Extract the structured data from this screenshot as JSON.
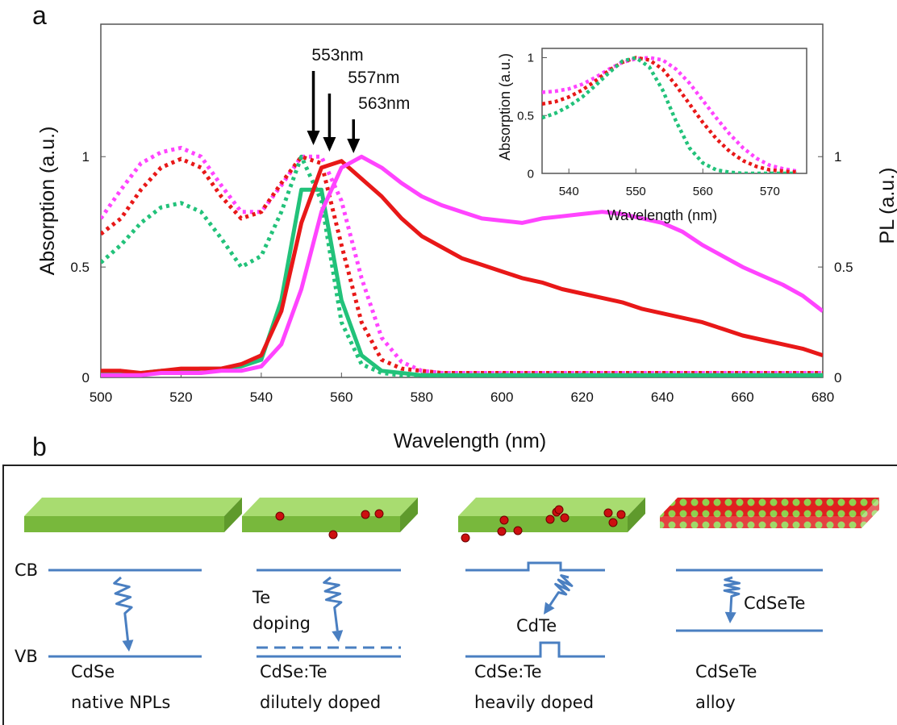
{
  "panel_labels": [
    "a",
    "b"
  ],
  "chart_data": [
    {
      "type": "line",
      "xlabel": "Wavelength (nm)",
      "ylabel": "Absorption (a.u.)",
      "y2label": "PL (a.u.)",
      "xlim": [
        500,
        680
      ],
      "xticks": [
        500,
        520,
        540,
        560,
        580,
        600,
        620,
        640,
        660,
        680
      ],
      "ylim": [
        0,
        1.6
      ],
      "yticks": [
        0,
        0.5,
        1
      ],
      "y2lim": [
        0,
        1.6
      ],
      "y2ticks": [
        0,
        0.5,
        1
      ],
      "grid": false,
      "x": [
        500,
        505,
        510,
        515,
        520,
        525,
        530,
        535,
        540,
        545,
        550,
        555,
        560,
        565,
        570,
        575,
        580,
        585,
        590,
        595,
        600,
        605,
        610,
        615,
        620,
        625,
        630,
        635,
        640,
        645,
        650,
        655,
        660,
        665,
        670,
        675,
        680
      ],
      "series": [
        {
          "color": "#ff44ff",
          "line_style": "dotted",
          "values": [
            0.72,
            0.85,
            0.97,
            1.02,
            1.04,
            1.0,
            0.87,
            0.75,
            0.75,
            0.87,
            1.0,
            1.0,
            0.8,
            0.45,
            0.18,
            0.07,
            0.03,
            0.02,
            0.02,
            0.02,
            0.02,
            0.02,
            0.02,
            0.02,
            0.02,
            0.02,
            0.02,
            0.02,
            0.02,
            0.02,
            0.02,
            0.02,
            0.02,
            0.02,
            0.02,
            0.02,
            0.02
          ]
        },
        {
          "color": "#e81818",
          "line_style": "dotted",
          "values": [
            0.65,
            0.72,
            0.85,
            0.95,
            0.99,
            0.95,
            0.82,
            0.72,
            0.75,
            0.88,
            1.0,
            0.97,
            0.6,
            0.25,
            0.08,
            0.04,
            0.03,
            0.02,
            0.02,
            0.02,
            0.02,
            0.02,
            0.02,
            0.02,
            0.02,
            0.02,
            0.02,
            0.02,
            0.02,
            0.02,
            0.02,
            0.02,
            0.02,
            0.02,
            0.02,
            0.02,
            0.02
          ]
        },
        {
          "color": "#22c27a",
          "line_style": "dotted",
          "values": [
            0.52,
            0.6,
            0.7,
            0.77,
            0.79,
            0.75,
            0.63,
            0.5,
            0.55,
            0.75,
            1.0,
            0.8,
            0.25,
            0.06,
            0.02,
            0.01,
            0.01,
            0.01,
            0.01,
            0.01,
            0.01,
            0.01,
            0.01,
            0.01,
            0.01,
            0.01,
            0.01,
            0.01,
            0.01,
            0.01,
            0.01,
            0.01,
            0.01,
            0.01,
            0.01,
            0.01,
            0.01
          ]
        },
        {
          "color": "#22c27a",
          "line_style": "solid",
          "axis": "y2",
          "values": [
            0.02,
            0.02,
            0.02,
            0.03,
            0.03,
            0.04,
            0.04,
            0.05,
            0.08,
            0.35,
            0.85,
            0.85,
            0.35,
            0.1,
            0.03,
            0.02,
            0.01,
            0.01,
            0.01,
            0.01,
            0.01,
            0.01,
            0.01,
            0.01,
            0.01,
            0.01,
            0.01,
            0.01,
            0.01,
            0.01,
            0.01,
            0.01,
            0.01,
            0.01,
            0.01,
            0.01,
            0.01
          ]
        },
        {
          "color": "#e81818",
          "line_style": "solid",
          "axis": "y2",
          "values": [
            0.03,
            0.03,
            0.02,
            0.03,
            0.04,
            0.04,
            0.04,
            0.06,
            0.1,
            0.3,
            0.7,
            0.95,
            0.98,
            0.9,
            0.82,
            0.72,
            0.64,
            0.59,
            0.54,
            0.51,
            0.48,
            0.45,
            0.43,
            0.4,
            0.38,
            0.36,
            0.34,
            0.31,
            0.29,
            0.27,
            0.25,
            0.22,
            0.19,
            0.17,
            0.15,
            0.13,
            0.1
          ]
        },
        {
          "color": "#ff44ff",
          "line_style": "solid",
          "axis": "y2",
          "values": [
            0.01,
            0.01,
            0.01,
            0.02,
            0.02,
            0.02,
            0.03,
            0.03,
            0.05,
            0.15,
            0.4,
            0.75,
            0.95,
            1.0,
            0.95,
            0.88,
            0.82,
            0.78,
            0.75,
            0.72,
            0.71,
            0.7,
            0.72,
            0.73,
            0.74,
            0.75,
            0.74,
            0.72,
            0.7,
            0.66,
            0.6,
            0.55,
            0.5,
            0.46,
            0.42,
            0.37,
            0.3
          ]
        }
      ],
      "annotations": [
        {
          "label": "553nm",
          "x": 553
        },
        {
          "label": "557nm",
          "x": 557
        },
        {
          "label": "563nm",
          "x": 563
        }
      ]
    },
    {
      "type": "line",
      "xlabel": "Wavelength (nm)",
      "ylabel": "Absorption (a.u.)",
      "xlim": [
        536,
        575.5
      ],
      "xticks": [
        540,
        550,
        560,
        570
      ],
      "ylim": [
        0,
        1.08
      ],
      "yticks": [
        0,
        0.5,
        1
      ],
      "x": [
        536,
        538,
        540,
        542,
        544,
        546,
        548,
        550,
        552,
        554,
        556,
        558,
        560,
        562,
        564,
        566,
        568,
        570,
        572,
        574
      ],
      "series": [
        {
          "color": "#ff44ff",
          "line_style": "dotted",
          "values": [
            0.7,
            0.71,
            0.73,
            0.77,
            0.83,
            0.9,
            0.96,
            0.99,
            1.0,
            0.98,
            0.9,
            0.78,
            0.63,
            0.48,
            0.34,
            0.22,
            0.13,
            0.07,
            0.04,
            0.02
          ]
        },
        {
          "color": "#e81818",
          "line_style": "dotted",
          "values": [
            0.6,
            0.62,
            0.66,
            0.72,
            0.8,
            0.89,
            0.96,
            1.0,
            0.98,
            0.9,
            0.76,
            0.6,
            0.44,
            0.3,
            0.19,
            0.11,
            0.06,
            0.03,
            0.02,
            0.01
          ]
        },
        {
          "color": "#22c27a",
          "line_style": "dotted",
          "values": [
            0.48,
            0.52,
            0.58,
            0.66,
            0.76,
            0.87,
            0.97,
            1.0,
            0.92,
            0.72,
            0.45,
            0.22,
            0.09,
            0.03,
            0.01,
            0,
            0,
            0,
            0,
            0
          ]
        }
      ]
    }
  ],
  "panel_b": {
    "cb": "CB",
    "vb": "VB",
    "columns": [
      {
        "caption": [
          "CdSe",
          "native NPLs"
        ]
      },
      {
        "caption": [
          "CdSe:Te",
          "dilutely doped"
        ],
        "note": [
          "Te",
          "doping"
        ]
      },
      {
        "caption": [
          "CdSe:Te",
          "heavily doped"
        ],
        "note": [
          "CdTe"
        ]
      },
      {
        "caption": [
          "CdSeTe",
          "alloy"
        ],
        "note": [
          "CdSeTe"
        ]
      }
    ]
  }
}
